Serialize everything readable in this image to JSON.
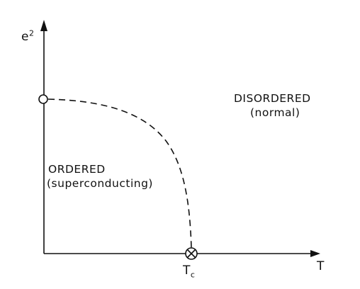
{
  "axes": {
    "y_label_base": "e",
    "y_label_exponent": "2",
    "x_label": "T"
  },
  "critical_point": {
    "label_main": "T",
    "label_sub": "c"
  },
  "regions": {
    "disordered_title": "DISORDERED",
    "disordered_subtitle": "(normal)",
    "ordered_title": "ORDERED",
    "ordered_subtitle": "(superconducting)"
  },
  "colors": {
    "ink": "#111111",
    "background": "#ffffff"
  }
}
